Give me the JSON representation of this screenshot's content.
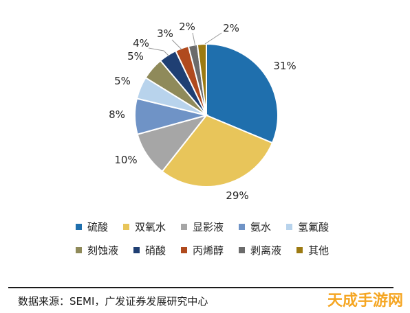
{
  "chart_data": {
    "type": "pie",
    "slices": [
      {
        "label": "硫酸",
        "value": 31,
        "value_label": "31%",
        "color": "#1f6fad"
      },
      {
        "label": "双氧水",
        "value": 29,
        "value_label": "29%",
        "color": "#e8c55a"
      },
      {
        "label": "显影液",
        "value": 10,
        "value_label": "10%",
        "color": "#a6a6a6"
      },
      {
        "label": "氨水",
        "value": 8,
        "value_label": "8%",
        "color": "#6f93c6"
      },
      {
        "label": "氢氟酸",
        "value": 5,
        "value_label": "5%",
        "color": "#b8d3ec"
      },
      {
        "label": "刻蚀液",
        "value": 5,
        "value_label": "5%",
        "color": "#8f8a5a"
      },
      {
        "label": "硝酸",
        "value": 4,
        "value_label": "4%",
        "color": "#1f3f73"
      },
      {
        "label": "丙烯醇",
        "value": 3,
        "value_label": "3%",
        "color": "#b04a1e"
      },
      {
        "label": "剥离液",
        "value": 2,
        "value_label": "2%",
        "color": "#6b6b6b"
      },
      {
        "label": "其他",
        "value": 2,
        "value_label": "2%",
        "color": "#9c7a12"
      }
    ],
    "legend_position": "bottom"
  },
  "source": "数据来源：SEMI，广发证券发展研究中心",
  "watermark": "天成手游网"
}
